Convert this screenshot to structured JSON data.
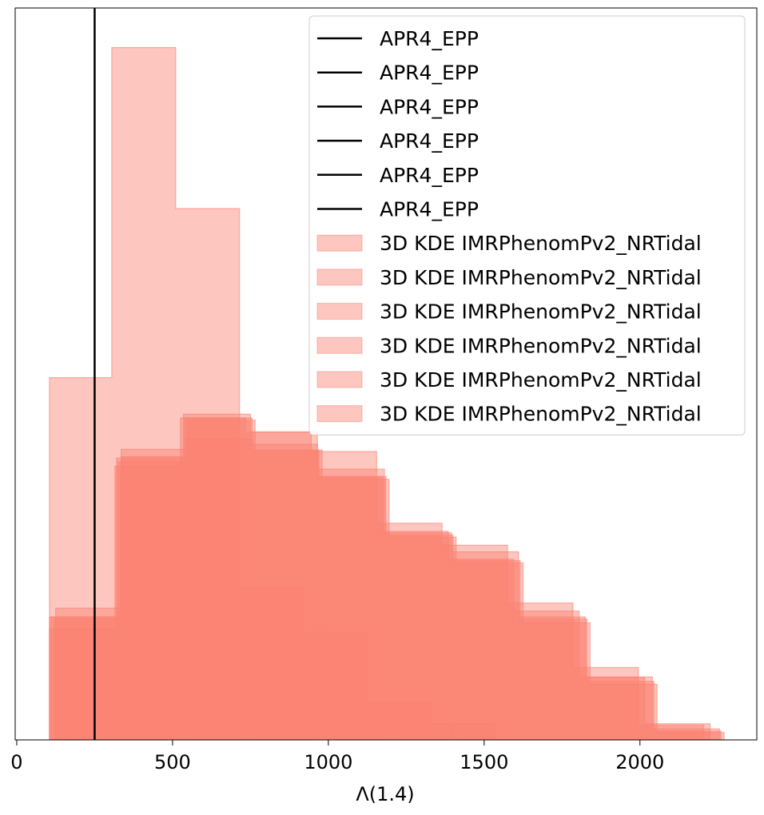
{
  "chart_data": {
    "type": "histogram",
    "title": "",
    "xlabel": "Λ(1.4)",
    "ylabel": "",
    "xlim": [
      -5,
      2375
    ],
    "ylim": [
      0,
      1.0
    ],
    "x_ticks": [
      0,
      500,
      1000,
      1500,
      2000
    ],
    "x_tick_labels": [
      "0",
      "500",
      "1000",
      "1500",
      "2000"
    ],
    "y_ticks_visible": false,
    "grid": false,
    "legend_position": "top-right",
    "fill_color": "#fa8072",
    "fill_alpha": 0.45,
    "vline": {
      "x": 250,
      "color": "#000000"
    },
    "series": [
      {
        "name": "3D KDE IMRPhenomPv2_NRTidal",
        "edges": [
          105,
          305,
          510,
          715,
          920,
          1125,
          1330,
          1535
        ],
        "values": [
          0.495,
          0.946,
          0.726,
          0.208,
          0.147,
          0.052,
          0.022
        ]
      },
      {
        "name": "3D KDE IMRPhenomPv2_NRTidal",
        "edges": [
          105,
          315,
          525,
          735,
          945,
          1155,
          1365,
          1575,
          1785,
          1995,
          2205
        ],
        "values": [
          0.168,
          0.374,
          0.44,
          0.42,
          0.394,
          0.296,
          0.266,
          0.187,
          0.099,
          0.02
        ]
      },
      {
        "name": "3D KDE IMRPhenomPv2_NRTidal",
        "edges": [
          105,
          320,
          535,
          750,
          965,
          1180,
          1395,
          1610,
          1825,
          2040,
          2255
        ],
        "values": [
          0.152,
          0.385,
          0.445,
          0.421,
          0.37,
          0.283,
          0.257,
          0.168,
          0.086,
          0.015
        ]
      },
      {
        "name": "3D KDE IMRPhenomPv2_NRTidal",
        "edges": [
          110,
          325,
          540,
          755,
          970,
          1185,
          1400,
          1615,
          1830,
          2045,
          2260
        ],
        "values": [
          0.168,
          0.38,
          0.44,
          0.395,
          0.36,
          0.28,
          0.245,
          0.165,
          0.08,
          0.012
        ]
      },
      {
        "name": "3D KDE IMRPhenomPv2_NRTidal",
        "edges": [
          120,
          335,
          550,
          765,
          980,
          1195,
          1410,
          1625,
          1840,
          2055,
          2270
        ],
        "values": [
          0.165,
          0.387,
          0.437,
          0.396,
          0.356,
          0.277,
          0.242,
          0.16,
          0.076,
          0.01
        ]
      },
      {
        "name": "3D KDE IMRPhenomPv2_NRTidal",
        "edges": [
          125,
          335,
          545,
          755,
          965,
          1175,
          1385,
          1595,
          1805,
          2015,
          2225
        ],
        "values": [
          0.18,
          0.397,
          0.411,
          0.404,
          0.359,
          0.285,
          0.247,
          0.176,
          0.085,
          0.022
        ]
      }
    ],
    "legend": [
      {
        "kind": "line",
        "label": "APR4_EPP"
      },
      {
        "kind": "line",
        "label": "APR4_EPP"
      },
      {
        "kind": "line",
        "label": "APR4_EPP"
      },
      {
        "kind": "line",
        "label": "APR4_EPP"
      },
      {
        "kind": "line",
        "label": "APR4_EPP"
      },
      {
        "kind": "line",
        "label": "APR4_EPP"
      },
      {
        "kind": "patch",
        "label": "3D KDE IMRPhenomPv2_NRTidal"
      },
      {
        "kind": "patch",
        "label": "3D KDE IMRPhenomPv2_NRTidal"
      },
      {
        "kind": "patch",
        "label": "3D KDE IMRPhenomPv2_NRTidal"
      },
      {
        "kind": "patch",
        "label": "3D KDE IMRPhenomPv2_NRTidal"
      },
      {
        "kind": "patch",
        "label": "3D KDE IMRPhenomPv2_NRTidal"
      },
      {
        "kind": "patch",
        "label": "3D KDE IMRPhenomPv2_NRTidal"
      }
    ]
  }
}
